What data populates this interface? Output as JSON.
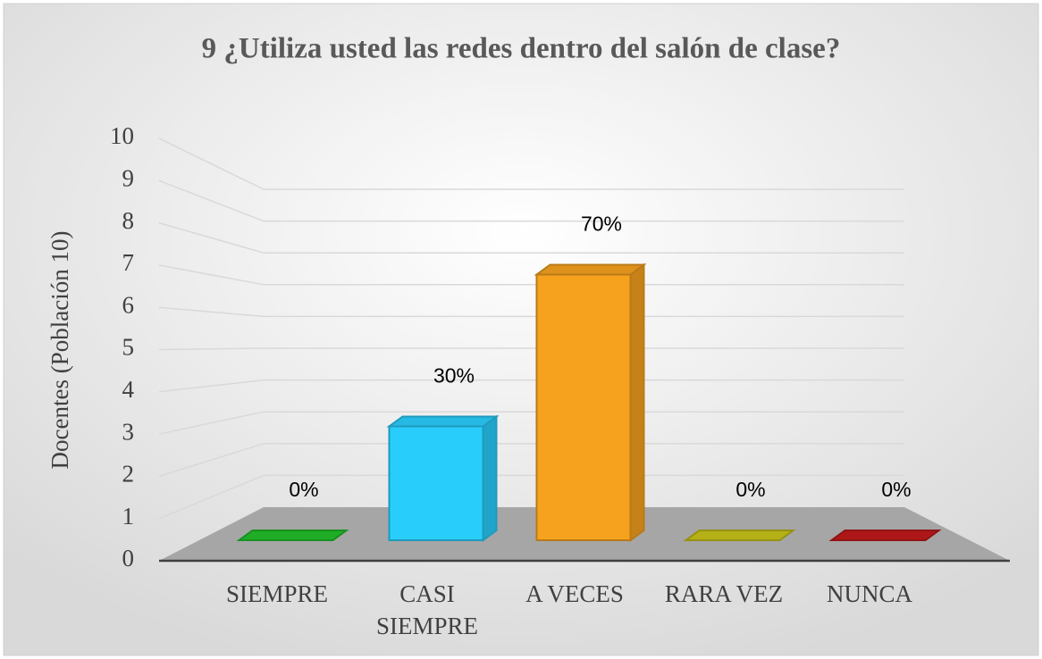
{
  "chart_data": {
    "type": "bar3d",
    "title": "9 ¿Utiliza usted las redes dentro del salón de clase?",
    "y_label": "Docentes (Población 10)",
    "categories": [
      "SIEMPRE",
      "CASI SIEMPRE",
      "A VECES",
      "RARA VEZ",
      "NUNCA"
    ],
    "values": [
      0,
      3,
      7,
      0,
      0
    ],
    "value_labels": [
      "0%",
      "30%",
      "70%",
      "0%",
      "0%"
    ],
    "colors": [
      "#22c02a",
      "#29cdfc",
      "#f7a21f",
      "#c8c318",
      "#c01a1a"
    ],
    "ylim": [
      0,
      10
    ],
    "yticks": [
      0,
      1,
      2,
      3,
      4,
      5,
      6,
      7,
      8,
      9,
      10
    ],
    "grid": true
  }
}
